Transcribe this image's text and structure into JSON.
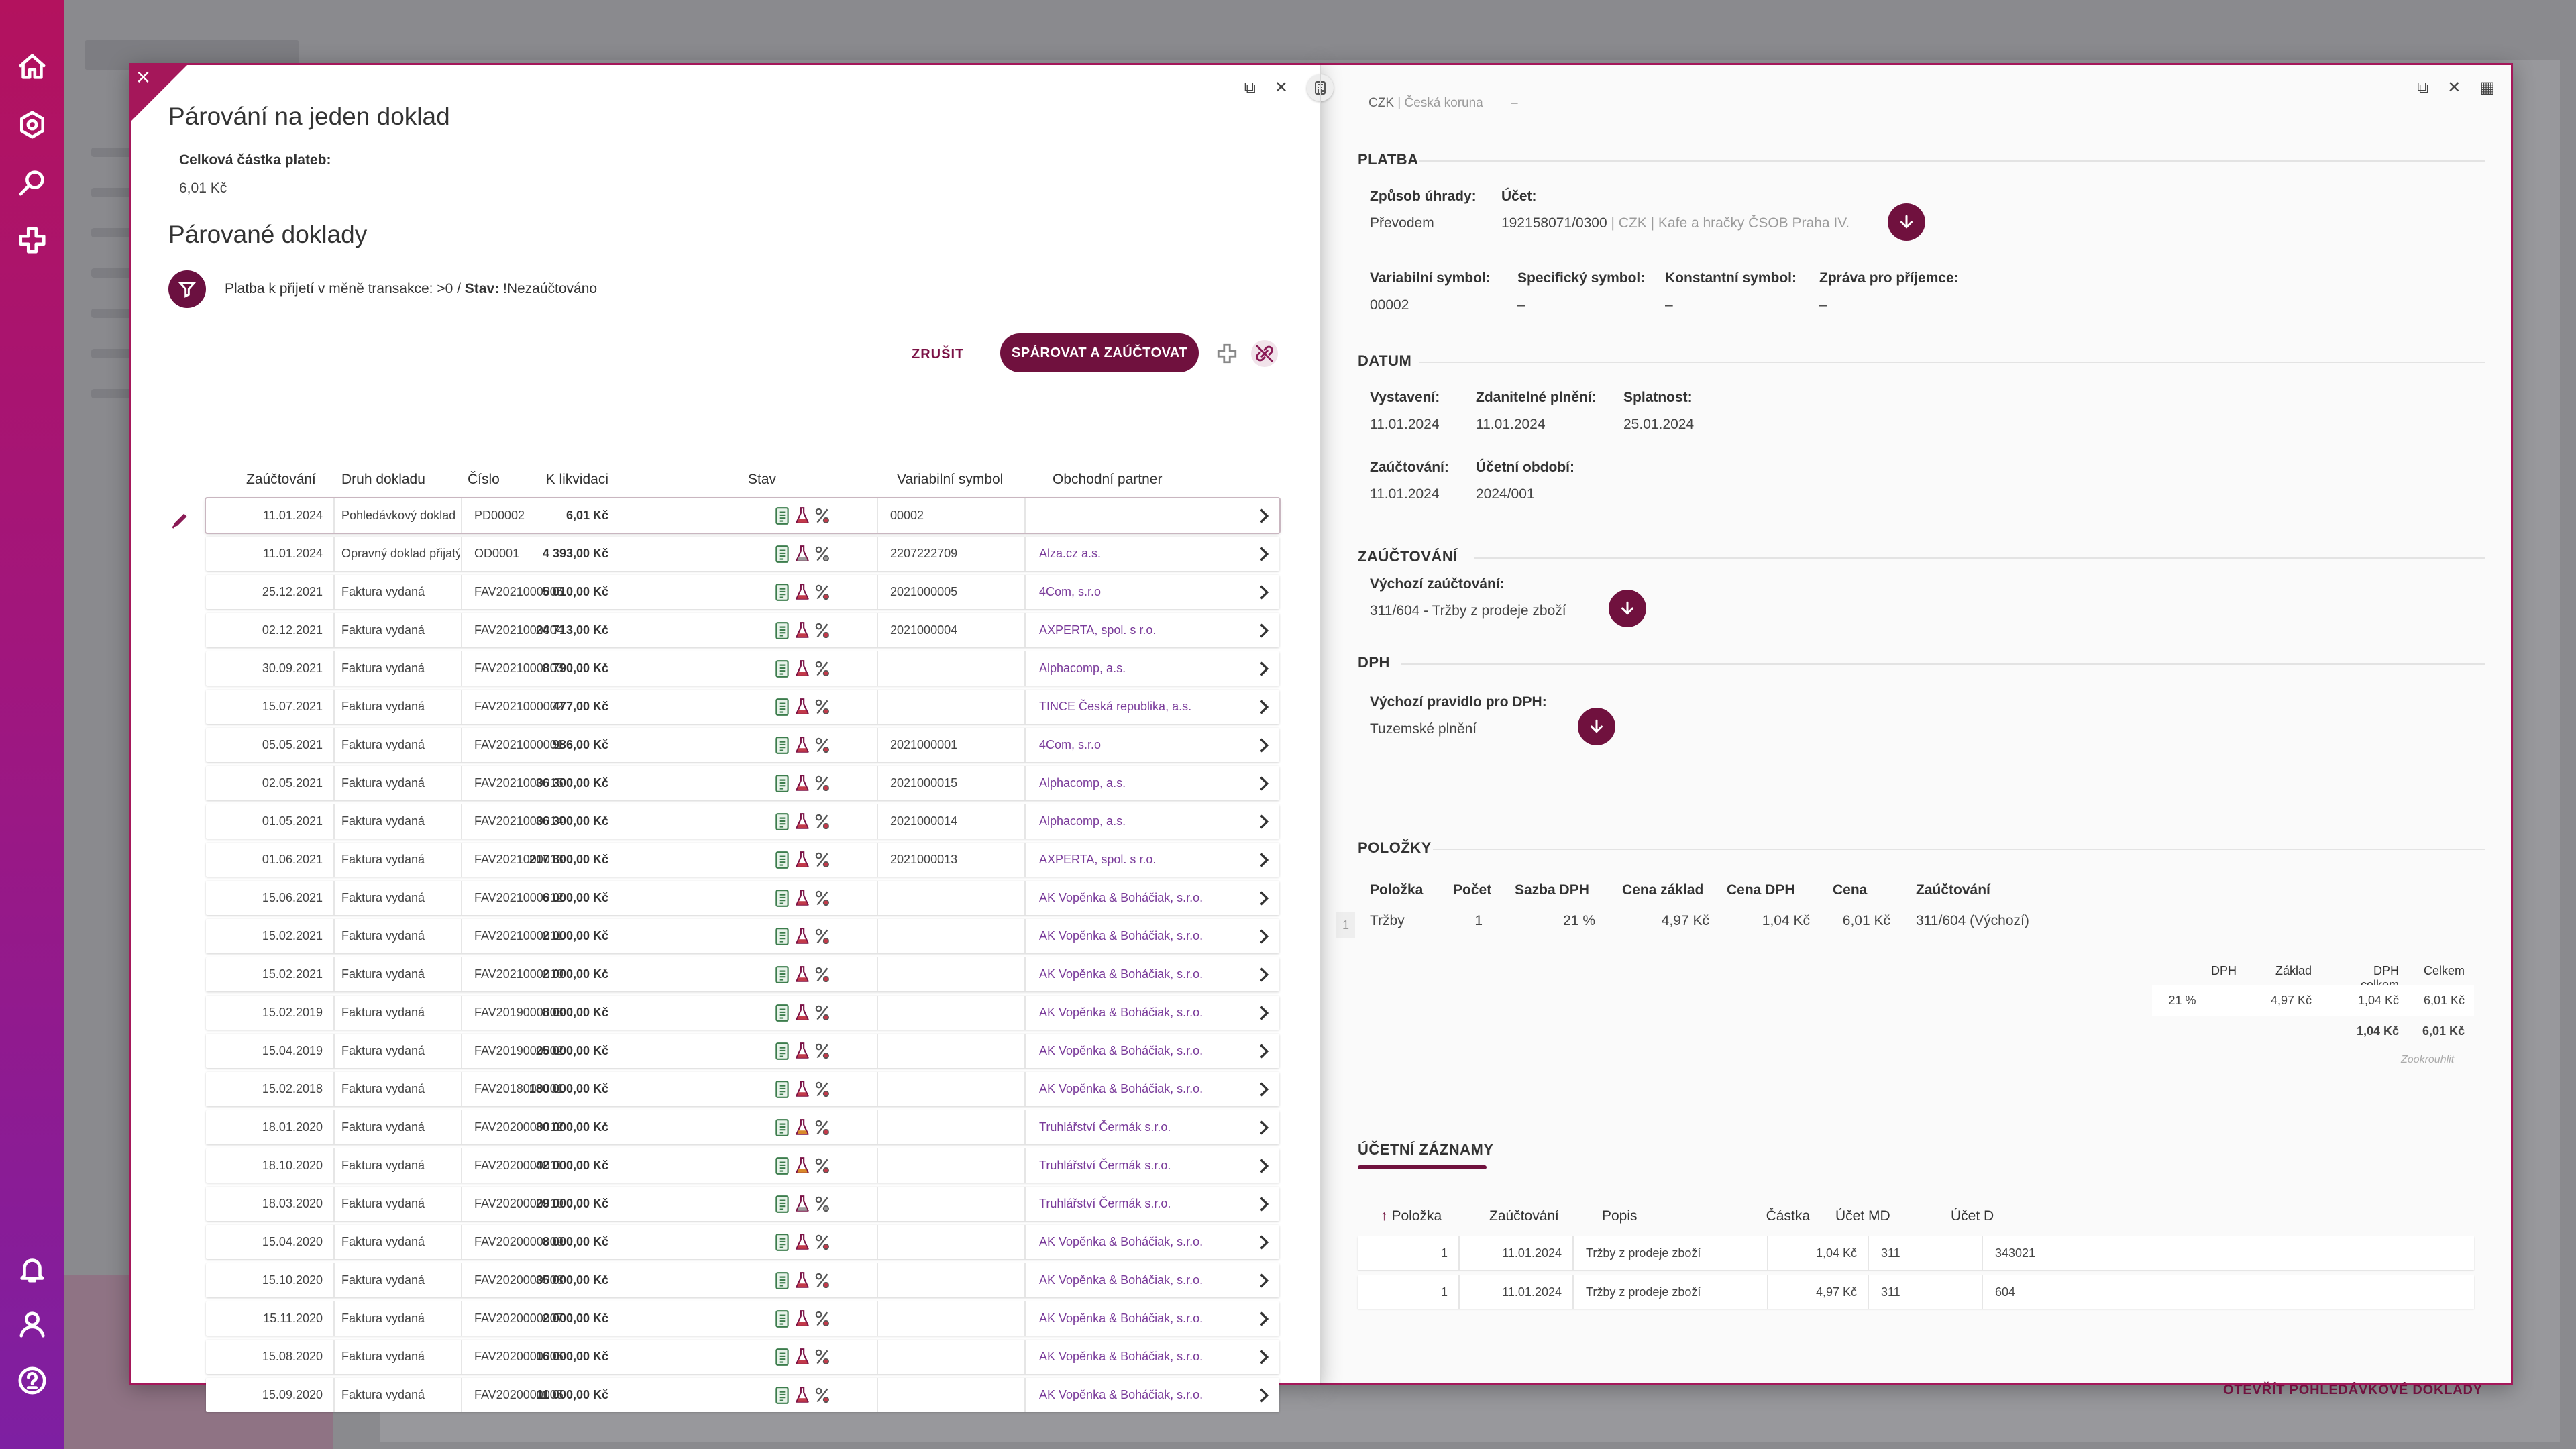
{
  "left_panel": {
    "title": "Párování na jeden doklad",
    "total_label": "Celková částka plateb:",
    "total_value": "6,01 Kč",
    "section_title": "Párované doklady",
    "filter_prefix": "Platba k přijetí v měně transakce:",
    "filter_value1": ">0 /",
    "filter_label2": "Stav:",
    "filter_value2": "!Nezaúčtováno",
    "cancel_label": "ZRUŠIT",
    "pair_label": "SPÁROVAT A ZAÚČTOVAT",
    "columns": [
      "Zaúčtování",
      "Druh dokladu",
      "Číslo",
      "K likvidaci",
      "Stav",
      "Variabilní symbol",
      "Obchodní partner"
    ],
    "rows": [
      {
        "date": "11.01.2024",
        "type": "Pohledávkový doklad",
        "number": "PD00002",
        "amount": "6,01 Kč",
        "vs": "00002",
        "partner": "",
        "selected": true,
        "stav": "red"
      },
      {
        "date": "11.01.2024",
        "type": "Opravný doklad přijatý",
        "number": "OD0001",
        "amount": "4 393,00 Kč",
        "vs": "2207222709",
        "partner": "Alza.cz a.s.",
        "stav": "gray"
      },
      {
        "date": "25.12.2021",
        "type": "Faktura vydaná",
        "number": "FAV2021000005",
        "amount": "5 010,00 Kč",
        "vs": "2021000005",
        "partner": "4Com, s.r.o",
        "stav": "red"
      },
      {
        "date": "02.12.2021",
        "type": "Faktura vydaná",
        "number": "FAV2021000004",
        "amount": "24 713,00 Kč",
        "vs": "2021000004",
        "partner": "AXPERTA, spol. s r.o.",
        "stav": "red"
      },
      {
        "date": "30.09.2021",
        "type": "Faktura vydaná",
        "number": "FAV2021000003",
        "amount": "8 790,00 Kč",
        "vs": "",
        "partner": "Alphacomp, a.s.",
        "stav": "red"
      },
      {
        "date": "15.07.2021",
        "type": "Faktura vydaná",
        "number": "FAV2021000002",
        "amount": "477,00 Kč",
        "vs": "",
        "partner": "TINCE Česká republika, a.s.",
        "stav": "red"
      },
      {
        "date": "05.05.2021",
        "type": "Faktura vydaná",
        "number": "FAV2021000001",
        "amount": "986,00 Kč",
        "vs": "2021000001",
        "partner": "4Com, s.r.o",
        "stav": "red"
      },
      {
        "date": "02.05.2021",
        "type": "Faktura vydaná",
        "number": "FAV2021000015",
        "amount": "36 300,00 Kč",
        "vs": "2021000015",
        "partner": "Alphacomp, a.s.",
        "stav": "red"
      },
      {
        "date": "01.05.2021",
        "type": "Faktura vydaná",
        "number": "FAV2021000014",
        "amount": "36 300,00 Kč",
        "vs": "2021000014",
        "partner": "Alphacomp, a.s.",
        "stav": "red"
      },
      {
        "date": "01.06.2021",
        "type": "Faktura vydaná",
        "number": "FAV2021000013",
        "amount": "217 800,00 Kč",
        "vs": "2021000013",
        "partner": "AXPERTA, spol. s r.o.",
        "stav": "red"
      },
      {
        "date": "15.06.2021",
        "type": "Faktura vydaná",
        "number": "FAV2021000012",
        "amount": "6 000,00 Kč",
        "vs": "",
        "partner": "AK Vopěnka & Boháčiak, s.r.o.",
        "stav": "red"
      },
      {
        "date": "15.02.2021",
        "type": "Faktura vydaná",
        "number": "FAV2021000011",
        "amount": "2 000,00 Kč",
        "vs": "",
        "partner": "AK Vopěnka & Boháčiak, s.r.o.",
        "stav": "red"
      },
      {
        "date": "15.02.2021",
        "type": "Faktura vydaná",
        "number": "FAV2021000010",
        "amount": "2 000,00 Kč",
        "vs": "",
        "partner": "AK Vopěnka & Boháčiak, s.r.o.",
        "stav": "red"
      },
      {
        "date": "15.02.2019",
        "type": "Faktura vydaná",
        "number": "FAV2019000003",
        "amount": "8 000,00 Kč",
        "vs": "",
        "partner": "AK Vopěnka & Boháčiak, s.r.o.",
        "stav": "red"
      },
      {
        "date": "15.04.2019",
        "type": "Faktura vydaná",
        "number": "FAV2019000002",
        "amount": "25 000,00 Kč",
        "vs": "",
        "partner": "AK Vopěnka & Boháčiak, s.r.o.",
        "stav": "red"
      },
      {
        "date": "15.02.2018",
        "type": "Faktura vydaná",
        "number": "FAV2018000001",
        "amount": "180 000,00 Kč",
        "vs": "",
        "partner": "AK Vopěnka & Boháčiak, s.r.o.",
        "stav": "red"
      },
      {
        "date": "18.01.2020",
        "type": "Faktura vydaná",
        "number": "FAV2020000012",
        "amount": "80 000,00 Kč",
        "vs": "",
        "partner": "Truhlářství Čermák s.r.o.",
        "stav": "orange"
      },
      {
        "date": "18.10.2020",
        "type": "Faktura vydaná",
        "number": "FAV2020000011",
        "amount": "42 000,00 Kč",
        "vs": "",
        "partner": "Truhlářství Čermák s.r.o.",
        "stav": "orange"
      },
      {
        "date": "18.03.2020",
        "type": "Faktura vydaná",
        "number": "FAV2020000010",
        "amount": "29 000,00 Kč",
        "vs": "",
        "partner": "Truhlářství Čermák s.r.o.",
        "stav": "gray"
      },
      {
        "date": "15.04.2020",
        "type": "Faktura vydaná",
        "number": "FAV2020000009",
        "amount": "8 000,00 Kč",
        "vs": "",
        "partner": "AK Vopěnka & Boháčiak, s.r.o.",
        "stav": "red"
      },
      {
        "date": "15.10.2020",
        "type": "Faktura vydaná",
        "number": "FAV2020000008",
        "amount": "35 000,00 Kč",
        "vs": "",
        "partner": "AK Vopěnka & Boháčiak, s.r.o.",
        "stav": "red"
      },
      {
        "date": "15.11.2020",
        "type": "Faktura vydaná",
        "number": "FAV2020000007",
        "amount": "2 000,00 Kč",
        "vs": "",
        "partner": "AK Vopěnka & Boháčiak, s.r.o.",
        "stav": "red"
      },
      {
        "date": "15.08.2020",
        "type": "Faktura vydaná",
        "number": "FAV2020000006",
        "amount": "16 000,00 Kč",
        "vs": "",
        "partner": "AK Vopěnka & Boháčiak, s.r.o.",
        "stav": "red"
      },
      {
        "date": "15.09.2020",
        "type": "Faktura vydaná",
        "number": "FAV2020000005",
        "amount": "11 000,00 Kč",
        "vs": "",
        "partner": "AK Vopěnka & Boháčiak, s.r.o.",
        "stav": "red"
      }
    ]
  },
  "right_panel": {
    "currency_line": "CZK",
    "currency_muted": "| Česká koruna",
    "currency_dash": "–",
    "platba": {
      "title": "PLATBA",
      "method_label": "Způsob úhrady:",
      "method_value": "Převodem",
      "account_label": "Účet:",
      "account_value": "192158071/0300",
      "account_muted": "| CZK | Kafe a hračky ČSOB Praha IV.",
      "vs_label": "Variabilní symbol:",
      "vs_value": "00002",
      "ss_label": "Specifický symbol:",
      "ss_value": "–",
      "ks_label": "Konstantní symbol:",
      "ks_value": "–",
      "msg_label": "Zpráva pro příjemce:",
      "msg_value": "–"
    },
    "datum": {
      "title": "DATUM",
      "issued_label": "Vystavení:",
      "issued_value": "11.01.2024",
      "taxable_label": "Zdanitelné plnění:",
      "taxable_value": "11.01.2024",
      "due_label": "Splatnost:",
      "due_value": "25.01.2024",
      "posting_label": "Zaúčtování:",
      "posting_value": "11.01.2024",
      "period_label": "Účetní období:",
      "period_value": "2024/001"
    },
    "zauctovani": {
      "title": "ZAÚČTOVÁNÍ",
      "default_label": "Výchozí zaúčtování:",
      "default_value": "311/604 - Tržby z prodeje zboží"
    },
    "dph": {
      "title": "DPH",
      "rule_label": "Výchozí pravidlo pro DPH:",
      "rule_value": "Tuzemské plnění"
    },
    "polozky": {
      "title": "POLOŽKY",
      "columns": [
        "Položka",
        "Počet",
        "Sazba DPH",
        "Cena základ",
        "Cena DPH",
        "Cena",
        "Zaúčtování"
      ],
      "row_index": "1",
      "row": [
        "Tržby",
        "1",
        "21 %",
        "4,97 Kč",
        "1,04 Kč",
        "6,01 Kč",
        "311/604 (Výchozí)"
      ],
      "vat_columns": [
        "DPH",
        "Základ",
        "DPH celkem",
        "Celkem"
      ],
      "vat_row": [
        "21 %",
        "4,97 Kč",
        "1,04 Kč",
        "6,01 Kč"
      ],
      "vat_total": [
        "1,04 Kč",
        "6,01 Kč"
      ],
      "round_label": "Zookrouhlit"
    },
    "ucetni": {
      "title": "ÚČETNÍ ZÁZNAMY",
      "columns": [
        "Položka",
        "Zaúčtování",
        "Popis",
        "Částka",
        "Účet MD",
        "Účet D"
      ],
      "rows": [
        [
          "1",
          "11.01.2024",
          "Tržby z prodeje zboží",
          "1,04 Kč",
          "311",
          "343021"
        ],
        [
          "1",
          "11.01.2024",
          "Tržby z prodeje zboží",
          "4,97 Kč",
          "311",
          "604"
        ]
      ]
    },
    "open_label": "OTEVŘÍT POHLEDÁVKOVÉ DOKLADY"
  }
}
